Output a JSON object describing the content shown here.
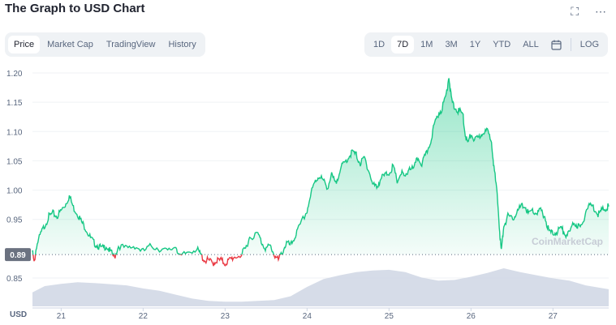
{
  "header": {
    "title": "The Graph to USD Chart"
  },
  "tabs": [
    {
      "label": "Price",
      "active": true
    },
    {
      "label": "Market Cap",
      "active": false
    },
    {
      "label": "TradingView",
      "active": false
    },
    {
      "label": "History",
      "active": false
    }
  ],
  "ranges": [
    {
      "label": "1D",
      "active": false
    },
    {
      "label": "7D",
      "active": true
    },
    {
      "label": "1M",
      "active": false
    },
    {
      "label": "3M",
      "active": false
    },
    {
      "label": "1Y",
      "active": false
    },
    {
      "label": "YTD",
      "active": false
    },
    {
      "label": "ALL",
      "active": false
    }
  ],
  "log_label": "LOG",
  "icons": {
    "fullscreen": "fullscreen-icon",
    "more": "more-icon",
    "calendar": "calendar-icon"
  },
  "watermark": "CoinMarketCap",
  "colors": {
    "up": "#16c784",
    "down": "#ea3943",
    "volume": "#cfd6e4",
    "grid": "#eff2f5"
  },
  "chart_data": {
    "type": "area",
    "currency_label": "USD",
    "reference_price": 0.89,
    "reference_label": "0.89",
    "ylim": [
      0.83,
      1.21
    ],
    "y_ticks": [
      "1.20",
      "1.15",
      "1.10",
      "1.05",
      "1.00",
      "0.95",
      "0.90",
      "0.85"
    ],
    "x_ticks": [
      "21",
      "22",
      "23",
      "24",
      "25",
      "26",
      "27"
    ],
    "xlim": [
      20.65,
      27.68
    ],
    "series": [
      {
        "values": [
          [
            20.65,
            0.895
          ],
          [
            20.67,
            0.875
          ],
          [
            20.7,
            0.905
          ],
          [
            20.75,
            0.925
          ],
          [
            20.8,
            0.94
          ],
          [
            20.85,
            0.955
          ],
          [
            20.9,
            0.96
          ],
          [
            20.95,
            0.955
          ],
          [
            21.0,
            0.965
          ],
          [
            21.05,
            0.975
          ],
          [
            21.1,
            0.99
          ],
          [
            21.15,
            0.97
          ],
          [
            21.2,
            0.96
          ],
          [
            21.25,
            0.945
          ],
          [
            21.3,
            0.935
          ],
          [
            21.35,
            0.92
          ],
          [
            21.4,
            0.91
          ],
          [
            21.45,
            0.905
          ],
          [
            21.5,
            0.9
          ],
          [
            21.55,
            0.905
          ],
          [
            21.6,
            0.895
          ],
          [
            21.65,
            0.885
          ],
          [
            21.7,
            0.905
          ],
          [
            21.8,
            0.9
          ],
          [
            21.9,
            0.905
          ],
          [
            22.0,
            0.895
          ],
          [
            22.1,
            0.905
          ],
          [
            22.2,
            0.9
          ],
          [
            22.3,
            0.895
          ],
          [
            22.4,
            0.905
          ],
          [
            22.45,
            0.885
          ],
          [
            22.55,
            0.895
          ],
          [
            22.65,
            0.9
          ],
          [
            22.7,
            0.89
          ],
          [
            22.75,
            0.88
          ],
          [
            22.8,
            0.88
          ],
          [
            22.85,
            0.875
          ],
          [
            22.9,
            0.88
          ],
          [
            22.95,
            0.88
          ],
          [
            23.0,
            0.875
          ],
          [
            23.05,
            0.88
          ],
          [
            23.1,
            0.885
          ],
          [
            23.2,
            0.89
          ],
          [
            23.25,
            0.9
          ],
          [
            23.3,
            0.92
          ],
          [
            23.4,
            0.925
          ],
          [
            23.45,
            0.91
          ],
          [
            23.5,
            0.9
          ],
          [
            23.55,
            0.905
          ],
          [
            23.6,
            0.89
          ],
          [
            23.65,
            0.88
          ],
          [
            23.7,
            0.895
          ],
          [
            23.75,
            0.91
          ],
          [
            23.8,
            0.905
          ],
          [
            23.85,
            0.92
          ],
          [
            23.9,
            0.935
          ],
          [
            24.0,
            0.965
          ],
          [
            24.05,
            0.995
          ],
          [
            24.1,
            1.015
          ],
          [
            24.15,
            1.025
          ],
          [
            24.2,
            1.015
          ],
          [
            24.25,
            1.005
          ],
          [
            24.3,
            1.025
          ],
          [
            24.35,
            1.01
          ],
          [
            24.4,
            1.035
          ],
          [
            24.45,
            1.045
          ],
          [
            24.5,
            1.055
          ],
          [
            24.55,
            1.065
          ],
          [
            24.6,
            1.06
          ],
          [
            24.65,
            1.045
          ],
          [
            24.7,
            1.055
          ],
          [
            24.75,
            1.035
          ],
          [
            24.8,
            1.01
          ],
          [
            24.85,
            1.005
          ],
          [
            24.9,
            1.02
          ],
          [
            24.95,
            1.025
          ],
          [
            25.0,
            1.03
          ],
          [
            25.05,
            1.04
          ],
          [
            25.1,
            1.015
          ],
          [
            25.15,
            1.03
          ],
          [
            25.2,
            1.02
          ],
          [
            25.25,
            1.04
          ],
          [
            25.3,
            1.035
          ],
          [
            25.35,
            1.055
          ],
          [
            25.4,
            1.045
          ],
          [
            25.45,
            1.06
          ],
          [
            25.5,
            1.08
          ],
          [
            25.55,
            1.11
          ],
          [
            25.6,
            1.13
          ],
          [
            25.65,
            1.14
          ],
          [
            25.7,
            1.165
          ],
          [
            25.73,
            1.195
          ],
          [
            25.76,
            1.155
          ],
          [
            25.8,
            1.14
          ],
          [
            25.85,
            1.135
          ],
          [
            25.9,
            1.13
          ],
          [
            25.93,
            1.095
          ],
          [
            25.96,
            1.08
          ],
          [
            26.0,
            1.095
          ],
          [
            26.05,
            1.085
          ],
          [
            26.1,
            1.09
          ],
          [
            26.15,
            1.1
          ],
          [
            26.2,
            1.1
          ],
          [
            26.25,
            1.085
          ],
          [
            26.28,
            1.04
          ],
          [
            26.32,
            0.99
          ],
          [
            26.35,
            0.93
          ],
          [
            26.37,
            0.895
          ],
          [
            26.4,
            0.94
          ],
          [
            26.45,
            0.955
          ],
          [
            26.5,
            0.95
          ],
          [
            26.55,
            0.96
          ],
          [
            26.6,
            0.97
          ],
          [
            26.65,
            0.975
          ],
          [
            26.7,
            0.96
          ],
          [
            26.75,
            0.965
          ],
          [
            26.8,
            0.96
          ],
          [
            26.85,
            0.965
          ],
          [
            26.9,
            0.955
          ],
          [
            26.95,
            0.93
          ],
          [
            27.0,
            0.925
          ],
          [
            27.05,
            0.93
          ],
          [
            27.1,
            0.935
          ],
          [
            27.15,
            0.925
          ],
          [
            27.2,
            0.925
          ],
          [
            27.25,
            0.945
          ],
          [
            27.3,
            0.94
          ],
          [
            27.35,
            0.935
          ],
          [
            27.4,
            0.965
          ],
          [
            27.45,
            0.975
          ],
          [
            27.5,
            0.97
          ],
          [
            27.55,
            0.96
          ],
          [
            27.6,
            0.965
          ],
          [
            27.65,
            0.97
          ],
          [
            27.68,
            0.972
          ]
        ]
      }
    ],
    "volume": [
      [
        20.65,
        0.36
      ],
      [
        20.8,
        0.52
      ],
      [
        21.0,
        0.58
      ],
      [
        21.2,
        0.62
      ],
      [
        21.4,
        0.6
      ],
      [
        21.6,
        0.57
      ],
      [
        21.8,
        0.54
      ],
      [
        22.0,
        0.46
      ],
      [
        22.2,
        0.4
      ],
      [
        22.4,
        0.3
      ],
      [
        22.6,
        0.2
      ],
      [
        22.8,
        0.14
      ],
      [
        23.0,
        0.12
      ],
      [
        23.2,
        0.12
      ],
      [
        23.4,
        0.14
      ],
      [
        23.6,
        0.16
      ],
      [
        23.8,
        0.26
      ],
      [
        24.0,
        0.5
      ],
      [
        24.2,
        0.7
      ],
      [
        24.4,
        0.8
      ],
      [
        24.6,
        0.88
      ],
      [
        24.8,
        0.92
      ],
      [
        25.0,
        0.94
      ],
      [
        25.2,
        0.88
      ],
      [
        25.4,
        0.74
      ],
      [
        25.6,
        0.66
      ],
      [
        25.8,
        0.68
      ],
      [
        26.0,
        0.76
      ],
      [
        26.2,
        0.86
      ],
      [
        26.4,
        0.98
      ],
      [
        26.6,
        0.88
      ],
      [
        26.8,
        0.8
      ],
      [
        27.0,
        0.72
      ],
      [
        27.2,
        0.66
      ],
      [
        27.4,
        0.54
      ],
      [
        27.68,
        0.44
      ]
    ]
  }
}
